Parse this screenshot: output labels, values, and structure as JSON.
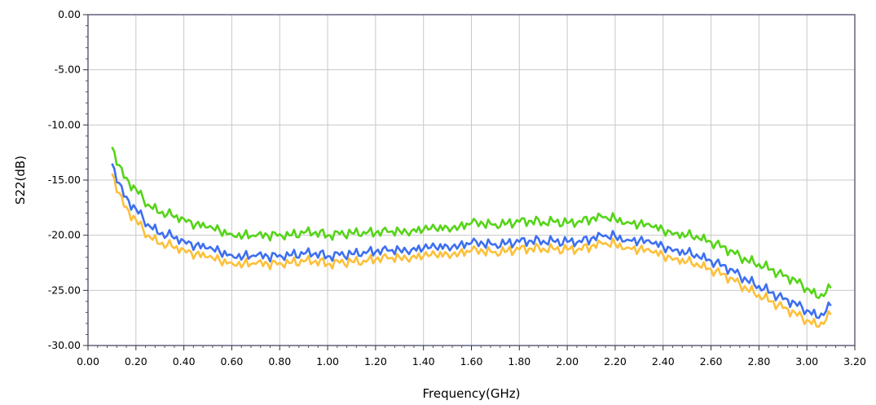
{
  "chart_data": {
    "type": "line",
    "title": "",
    "xlabel": "Frequency(GHz)",
    "ylabel": "S22(dB)",
    "xlim": [
      0.0,
      3.2
    ],
    "ylim": [
      -30.0,
      0.0
    ],
    "grid": true,
    "legend": "none",
    "x_ticks": [
      "0.00",
      "0.20",
      "0.40",
      "0.60",
      "0.80",
      "1.00",
      "1.20",
      "1.40",
      "1.60",
      "1.80",
      "2.00",
      "2.20",
      "2.40",
      "2.60",
      "2.80",
      "3.00",
      "3.20"
    ],
    "y_ticks": [
      "0.00",
      "-5.00",
      "-10.00",
      "-15.00",
      "-20.00",
      "-25.00",
      "-30.00"
    ],
    "x": [
      0.1,
      0.15,
      0.2,
      0.25,
      0.3,
      0.35,
      0.4,
      0.45,
      0.5,
      0.55,
      0.6,
      0.65,
      0.7,
      0.75,
      0.8,
      0.85,
      0.9,
      0.95,
      1.0,
      1.05,
      1.1,
      1.15,
      1.2,
      1.25,
      1.3,
      1.35,
      1.4,
      1.45,
      1.5,
      1.55,
      1.6,
      1.65,
      1.7,
      1.75,
      1.8,
      1.85,
      1.9,
      1.95,
      2.0,
      2.05,
      2.1,
      2.15,
      2.2,
      2.25,
      2.3,
      2.35,
      2.4,
      2.45,
      2.5,
      2.55,
      2.6,
      2.65,
      2.7,
      2.75,
      2.8,
      2.85,
      2.9,
      2.95,
      3.0,
      3.05,
      3.1
    ],
    "series": [
      {
        "color": "#55d418",
        "values": [
          -12.0,
          -14.8,
          -15.8,
          -17.2,
          -18.0,
          -18.2,
          -18.5,
          -19.0,
          -19.3,
          -19.6,
          -19.9,
          -20.0,
          -20.1,
          -20.0,
          -19.9,
          -20.0,
          -19.8,
          -19.7,
          -20.0,
          -19.9,
          -19.8,
          -19.7,
          -19.8,
          -19.7,
          -19.6,
          -19.6,
          -19.5,
          -19.4,
          -19.3,
          -19.2,
          -18.9,
          -19.0,
          -19.0,
          -18.9,
          -18.8,
          -18.7,
          -18.8,
          -18.8,
          -18.9,
          -18.7,
          -18.5,
          -18.4,
          -18.5,
          -18.8,
          -19.0,
          -19.2,
          -19.5,
          -19.8,
          -20.0,
          -20.3,
          -20.6,
          -21.0,
          -21.7,
          -22.3,
          -22.6,
          -23.1,
          -23.7,
          -24.0,
          -24.8,
          -25.7,
          -24.8
        ]
      },
      {
        "color": "#3d6ff0",
        "values": [
          -13.5,
          -16.5,
          -17.6,
          -19.0,
          -19.9,
          -20.1,
          -20.5,
          -20.9,
          -21.2,
          -21.5,
          -21.8,
          -21.9,
          -21.9,
          -21.9,
          -21.8,
          -21.8,
          -21.7,
          -21.6,
          -21.9,
          -21.8,
          -21.7,
          -21.5,
          -21.5,
          -21.4,
          -21.3,
          -21.3,
          -21.2,
          -21.1,
          -21.0,
          -20.9,
          -20.7,
          -20.8,
          -20.8,
          -20.7,
          -20.6,
          -20.5,
          -20.5,
          -20.6,
          -20.6,
          -20.5,
          -20.3,
          -20.1,
          -20.1,
          -20.4,
          -20.5,
          -20.7,
          -21.0,
          -21.3,
          -21.6,
          -22.0,
          -22.3,
          -22.7,
          -23.4,
          -24.1,
          -24.6,
          -25.2,
          -25.8,
          -26.1,
          -26.8,
          -27.5,
          -26.4
        ]
      },
      {
        "color": "#fdc03a",
        "values": [
          -14.4,
          -17.4,
          -18.6,
          -20.0,
          -20.8,
          -21.0,
          -21.3,
          -21.7,
          -22.0,
          -22.3,
          -22.5,
          -22.6,
          -22.6,
          -22.6,
          -22.5,
          -22.5,
          -22.4,
          -22.3,
          -22.6,
          -22.5,
          -22.4,
          -22.3,
          -22.2,
          -22.1,
          -22.0,
          -22.0,
          -21.9,
          -21.8,
          -21.7,
          -21.6,
          -21.4,
          -21.5,
          -21.5,
          -21.4,
          -21.3,
          -21.2,
          -21.2,
          -21.3,
          -21.3,
          -21.2,
          -21.0,
          -20.8,
          -20.8,
          -21.1,
          -21.3,
          -21.5,
          -21.8,
          -22.1,
          -22.4,
          -22.8,
          -23.1,
          -23.5,
          -24.2,
          -24.9,
          -25.4,
          -26.0,
          -26.6,
          -27.0,
          -27.7,
          -28.3,
          -27.2
        ]
      }
    ]
  }
}
